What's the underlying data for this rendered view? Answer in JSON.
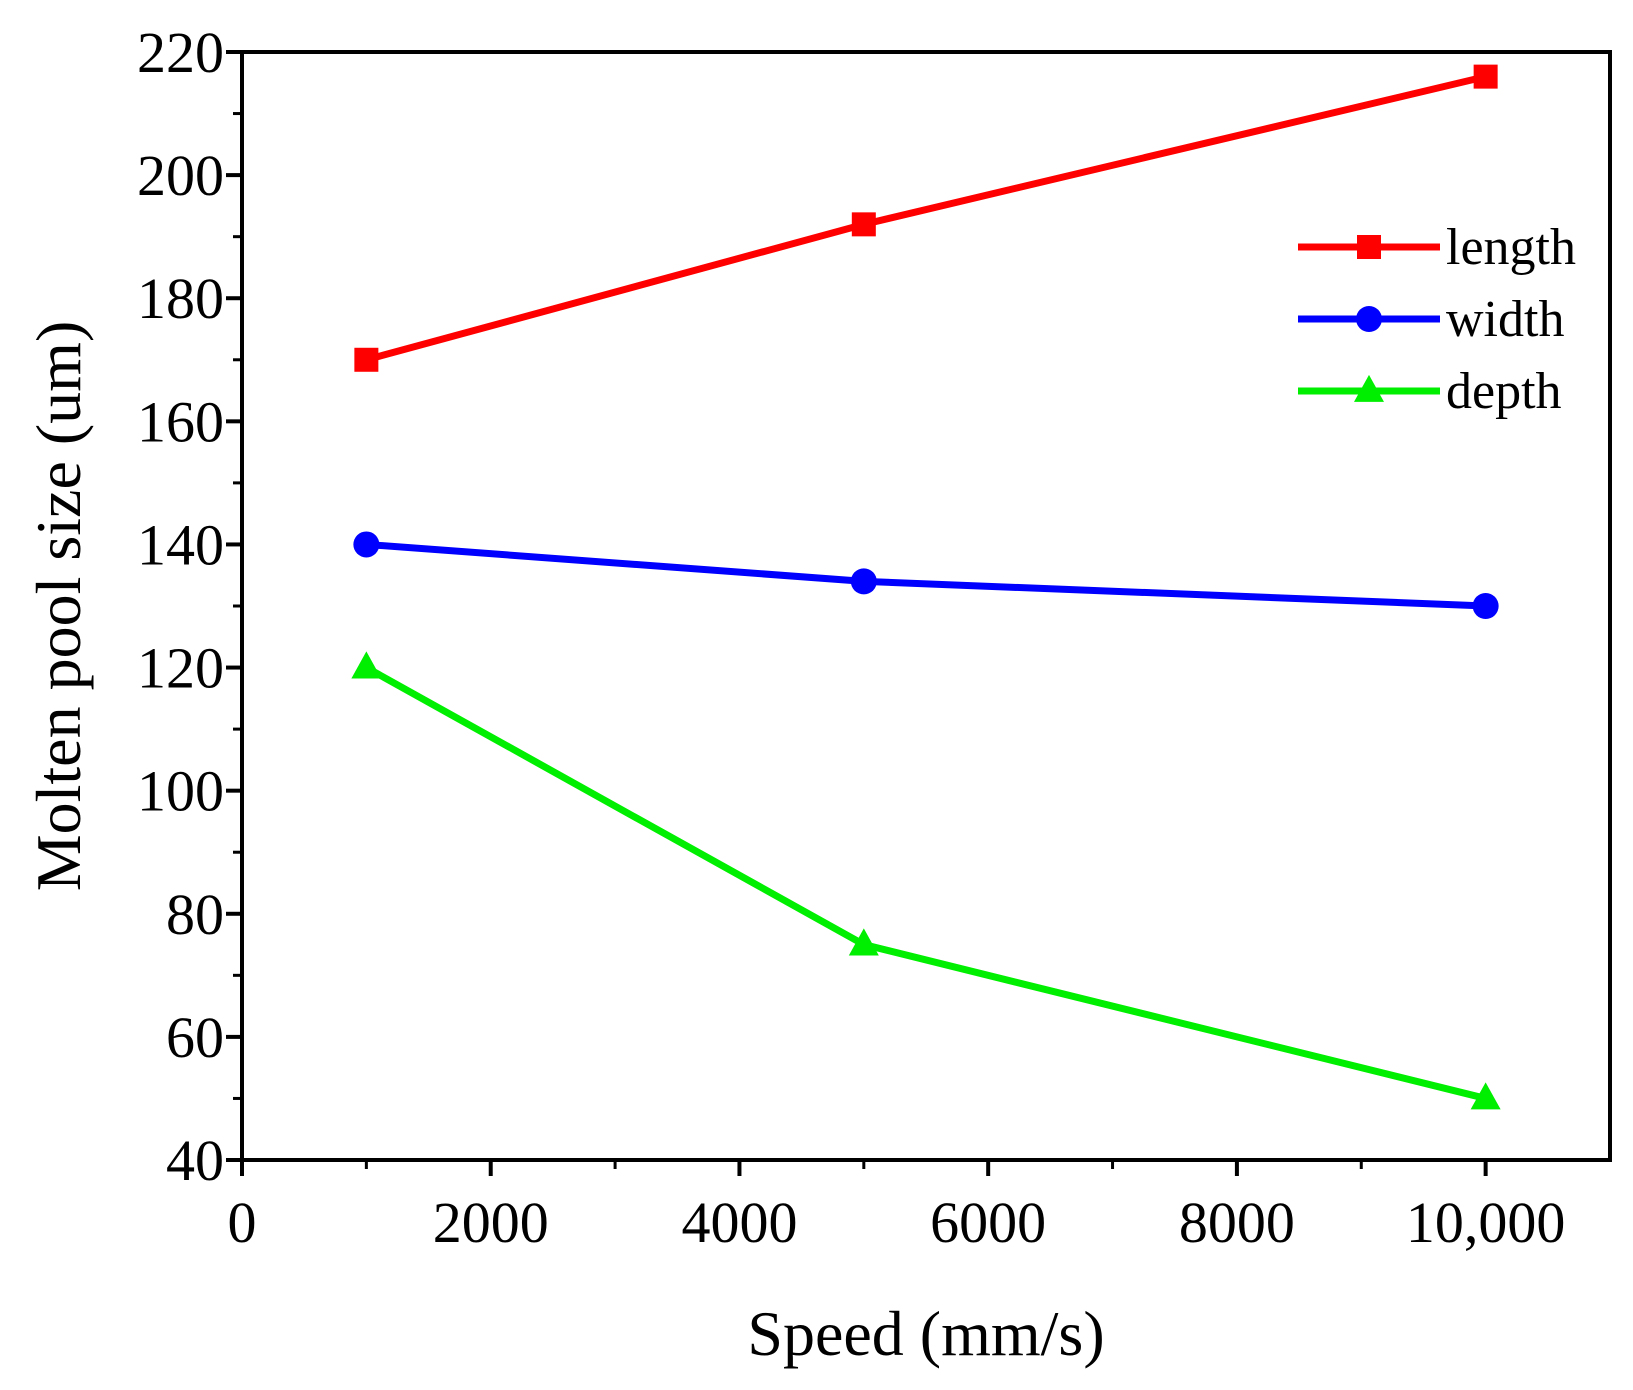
{
  "chart_data": {
    "type": "line",
    "title": "",
    "xlabel": "Speed (mm/s)",
    "ylabel": "Molten pool size (um)",
    "xlim": [
      0,
      11000
    ],
    "ylim": [
      40,
      220
    ],
    "x_ticks": [
      0,
      2000,
      4000,
      6000,
      8000,
      10000
    ],
    "x_tick_labels": [
      "0",
      "2000",
      "4000",
      "6000",
      "8000",
      "10,000"
    ],
    "y_ticks": [
      40,
      60,
      80,
      100,
      120,
      140,
      160,
      180,
      200,
      220
    ],
    "y_tick_labels": [
      "40",
      "60",
      "80",
      "100",
      "120",
      "140",
      "160",
      "180",
      "200",
      "220"
    ],
    "grid": false,
    "legend_position": "top-right",
    "x": [
      1000,
      5000,
      10000
    ],
    "series": [
      {
        "name": "length",
        "values": [
          170,
          192,
          216
        ],
        "color": "#ff0000",
        "marker": "square"
      },
      {
        "name": "width",
        "values": [
          140,
          134,
          130
        ],
        "color": "#0000ff",
        "marker": "circle"
      },
      {
        "name": "depth",
        "values": [
          120,
          75,
          50
        ],
        "color": "#00ee00",
        "marker": "triangle"
      }
    ]
  }
}
